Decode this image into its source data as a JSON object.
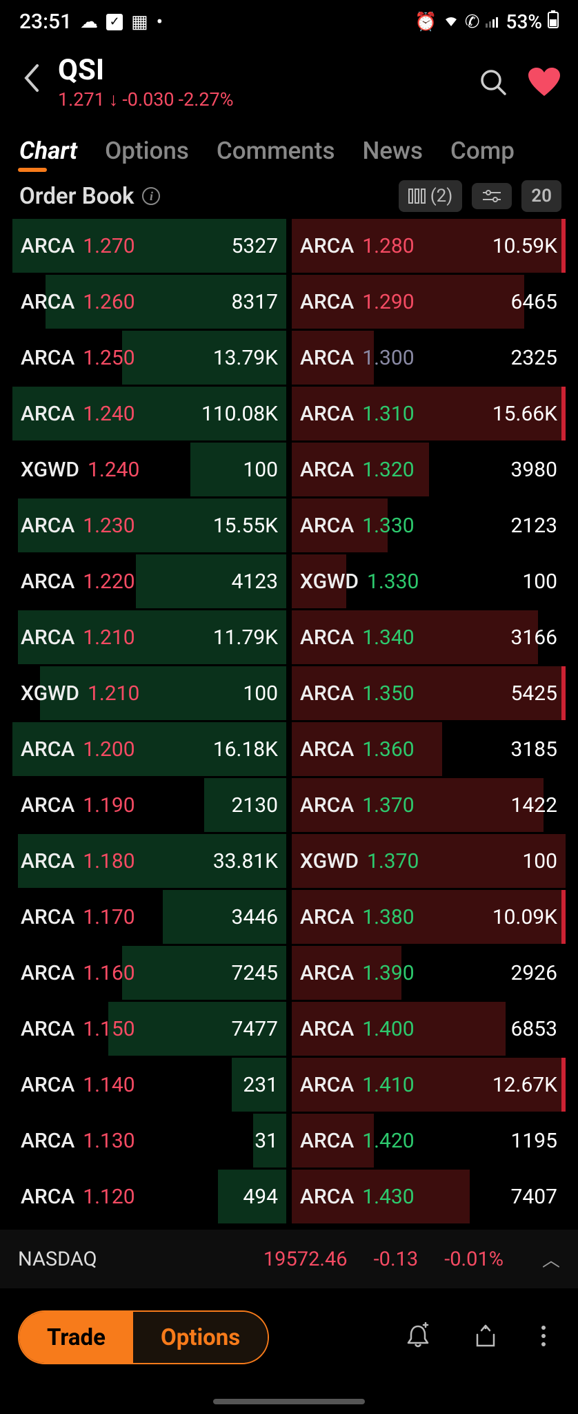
{
  "status": {
    "time": "23:51",
    "battery": "53%",
    "left_icons": [
      "☁",
      "✔",
      "📅",
      "•"
    ],
    "right_icons": [
      "⏰",
      "📶",
      "📞",
      "▮"
    ]
  },
  "header": {
    "ticker": "QSI",
    "price": "1.271",
    "arrow": "↓",
    "change": "-0.030",
    "change_pct": "-2.27%"
  },
  "tabs": [
    "Chart",
    "Options",
    "Comments",
    "News",
    "Comp"
  ],
  "tabs_active": 0,
  "section": {
    "title": "Order Book",
    "columns_label": "(2)",
    "depth_label": "20"
  },
  "orderbook": {
    "bids": [
      {
        "exch": "ARCA",
        "price": "1.270",
        "qty": "5327",
        "depth": 100
      },
      {
        "exch": "ARCA",
        "price": "1.260",
        "qty": "8317",
        "depth": 88
      },
      {
        "exch": "ARCA",
        "price": "1.250",
        "qty": "13.79K",
        "depth": 60
      },
      {
        "exch": "ARCA",
        "price": "1.240",
        "qty": "110.08K",
        "depth": 100
      },
      {
        "exch": "XGWD",
        "price": "1.240",
        "qty": "100",
        "depth": 35
      },
      {
        "exch": "ARCA",
        "price": "1.230",
        "qty": "15.55K",
        "depth": 98
      },
      {
        "exch": "ARCA",
        "price": "1.220",
        "qty": "4123",
        "depth": 55
      },
      {
        "exch": "ARCA",
        "price": "1.210",
        "qty": "11.79K",
        "depth": 98
      },
      {
        "exch": "XGWD",
        "price": "1.210",
        "qty": "100",
        "depth": 90
      },
      {
        "exch": "ARCA",
        "price": "1.200",
        "qty": "16.18K",
        "depth": 100
      },
      {
        "exch": "ARCA",
        "price": "1.190",
        "qty": "2130",
        "depth": 30
      },
      {
        "exch": "ARCA",
        "price": "1.180",
        "qty": "33.81K",
        "depth": 98
      },
      {
        "exch": "ARCA",
        "price": "1.170",
        "qty": "3446",
        "depth": 45
      },
      {
        "exch": "ARCA",
        "price": "1.160",
        "qty": "7245",
        "depth": 60
      },
      {
        "exch": "ARCA",
        "price": "1.150",
        "qty": "7477",
        "depth": 65
      },
      {
        "exch": "ARCA",
        "price": "1.140",
        "qty": "231",
        "depth": 20
      },
      {
        "exch": "ARCA",
        "price": "1.130",
        "qty": "31",
        "depth": 12
      },
      {
        "exch": "ARCA",
        "price": "1.120",
        "qty": "494",
        "depth": 25
      }
    ],
    "asks": [
      {
        "exch": "ARCA",
        "price": "1.280",
        "qty": "10.59K",
        "depth": 100,
        "color": "red",
        "edge": true
      },
      {
        "exch": "ARCA",
        "price": "1.290",
        "qty": "6465",
        "depth": 85,
        "color": "red",
        "edge": false
      },
      {
        "exch": "ARCA",
        "price": "1.300",
        "qty": "2325",
        "depth": 30,
        "color": "gray",
        "edge": false
      },
      {
        "exch": "ARCA",
        "price": "1.310",
        "qty": "15.66K",
        "depth": 100,
        "color": "green",
        "edge": true
      },
      {
        "exch": "ARCA",
        "price": "1.320",
        "qty": "3980",
        "depth": 50,
        "color": "green",
        "edge": false
      },
      {
        "exch": "ARCA",
        "price": "1.330",
        "qty": "2123",
        "depth": 35,
        "color": "green",
        "edge": false
      },
      {
        "exch": "XGWD",
        "price": "1.330",
        "qty": "100",
        "depth": 20,
        "color": "green",
        "edge": false
      },
      {
        "exch": "ARCA",
        "price": "1.340",
        "qty": "3166",
        "depth": 90,
        "color": "green",
        "edge": false
      },
      {
        "exch": "ARCA",
        "price": "1.350",
        "qty": "5425",
        "depth": 100,
        "color": "green",
        "edge": true
      },
      {
        "exch": "ARCA",
        "price": "1.360",
        "qty": "3185",
        "depth": 55,
        "color": "green",
        "edge": false
      },
      {
        "exch": "ARCA",
        "price": "1.370",
        "qty": "1422",
        "depth": 92,
        "color": "green",
        "edge": false
      },
      {
        "exch": "XGWD",
        "price": "1.370",
        "qty": "100",
        "depth": 100,
        "color": "green",
        "edge": false
      },
      {
        "exch": "ARCA",
        "price": "1.380",
        "qty": "10.09K",
        "depth": 100,
        "color": "green",
        "edge": true
      },
      {
        "exch": "ARCA",
        "price": "1.390",
        "qty": "2926",
        "depth": 40,
        "color": "green",
        "edge": false
      },
      {
        "exch": "ARCA",
        "price": "1.400",
        "qty": "6853",
        "depth": 78,
        "color": "green",
        "edge": false
      },
      {
        "exch": "ARCA",
        "price": "1.410",
        "qty": "12.67K",
        "depth": 100,
        "color": "green",
        "edge": true
      },
      {
        "exch": "ARCA",
        "price": "1.420",
        "qty": "1195",
        "depth": 30,
        "color": "green",
        "edge": false
      },
      {
        "exch": "ARCA",
        "price": "1.430",
        "qty": "7407",
        "depth": 65,
        "color": "green",
        "edge": false
      }
    ]
  },
  "index": {
    "name": "NASDAQ",
    "value": "19572.46",
    "change": "-0.13",
    "change_pct": "-0.01%"
  },
  "bottom": {
    "trade": "Trade",
    "options": "Options"
  },
  "colors": {
    "bg": "#000000",
    "red": "#f54b63",
    "green": "#2dc96d",
    "orange": "#f77b1b",
    "bid_depth": "rgba(18,90,50,0.55)",
    "ask_depth": "rgba(110,24,24,0.55)"
  }
}
